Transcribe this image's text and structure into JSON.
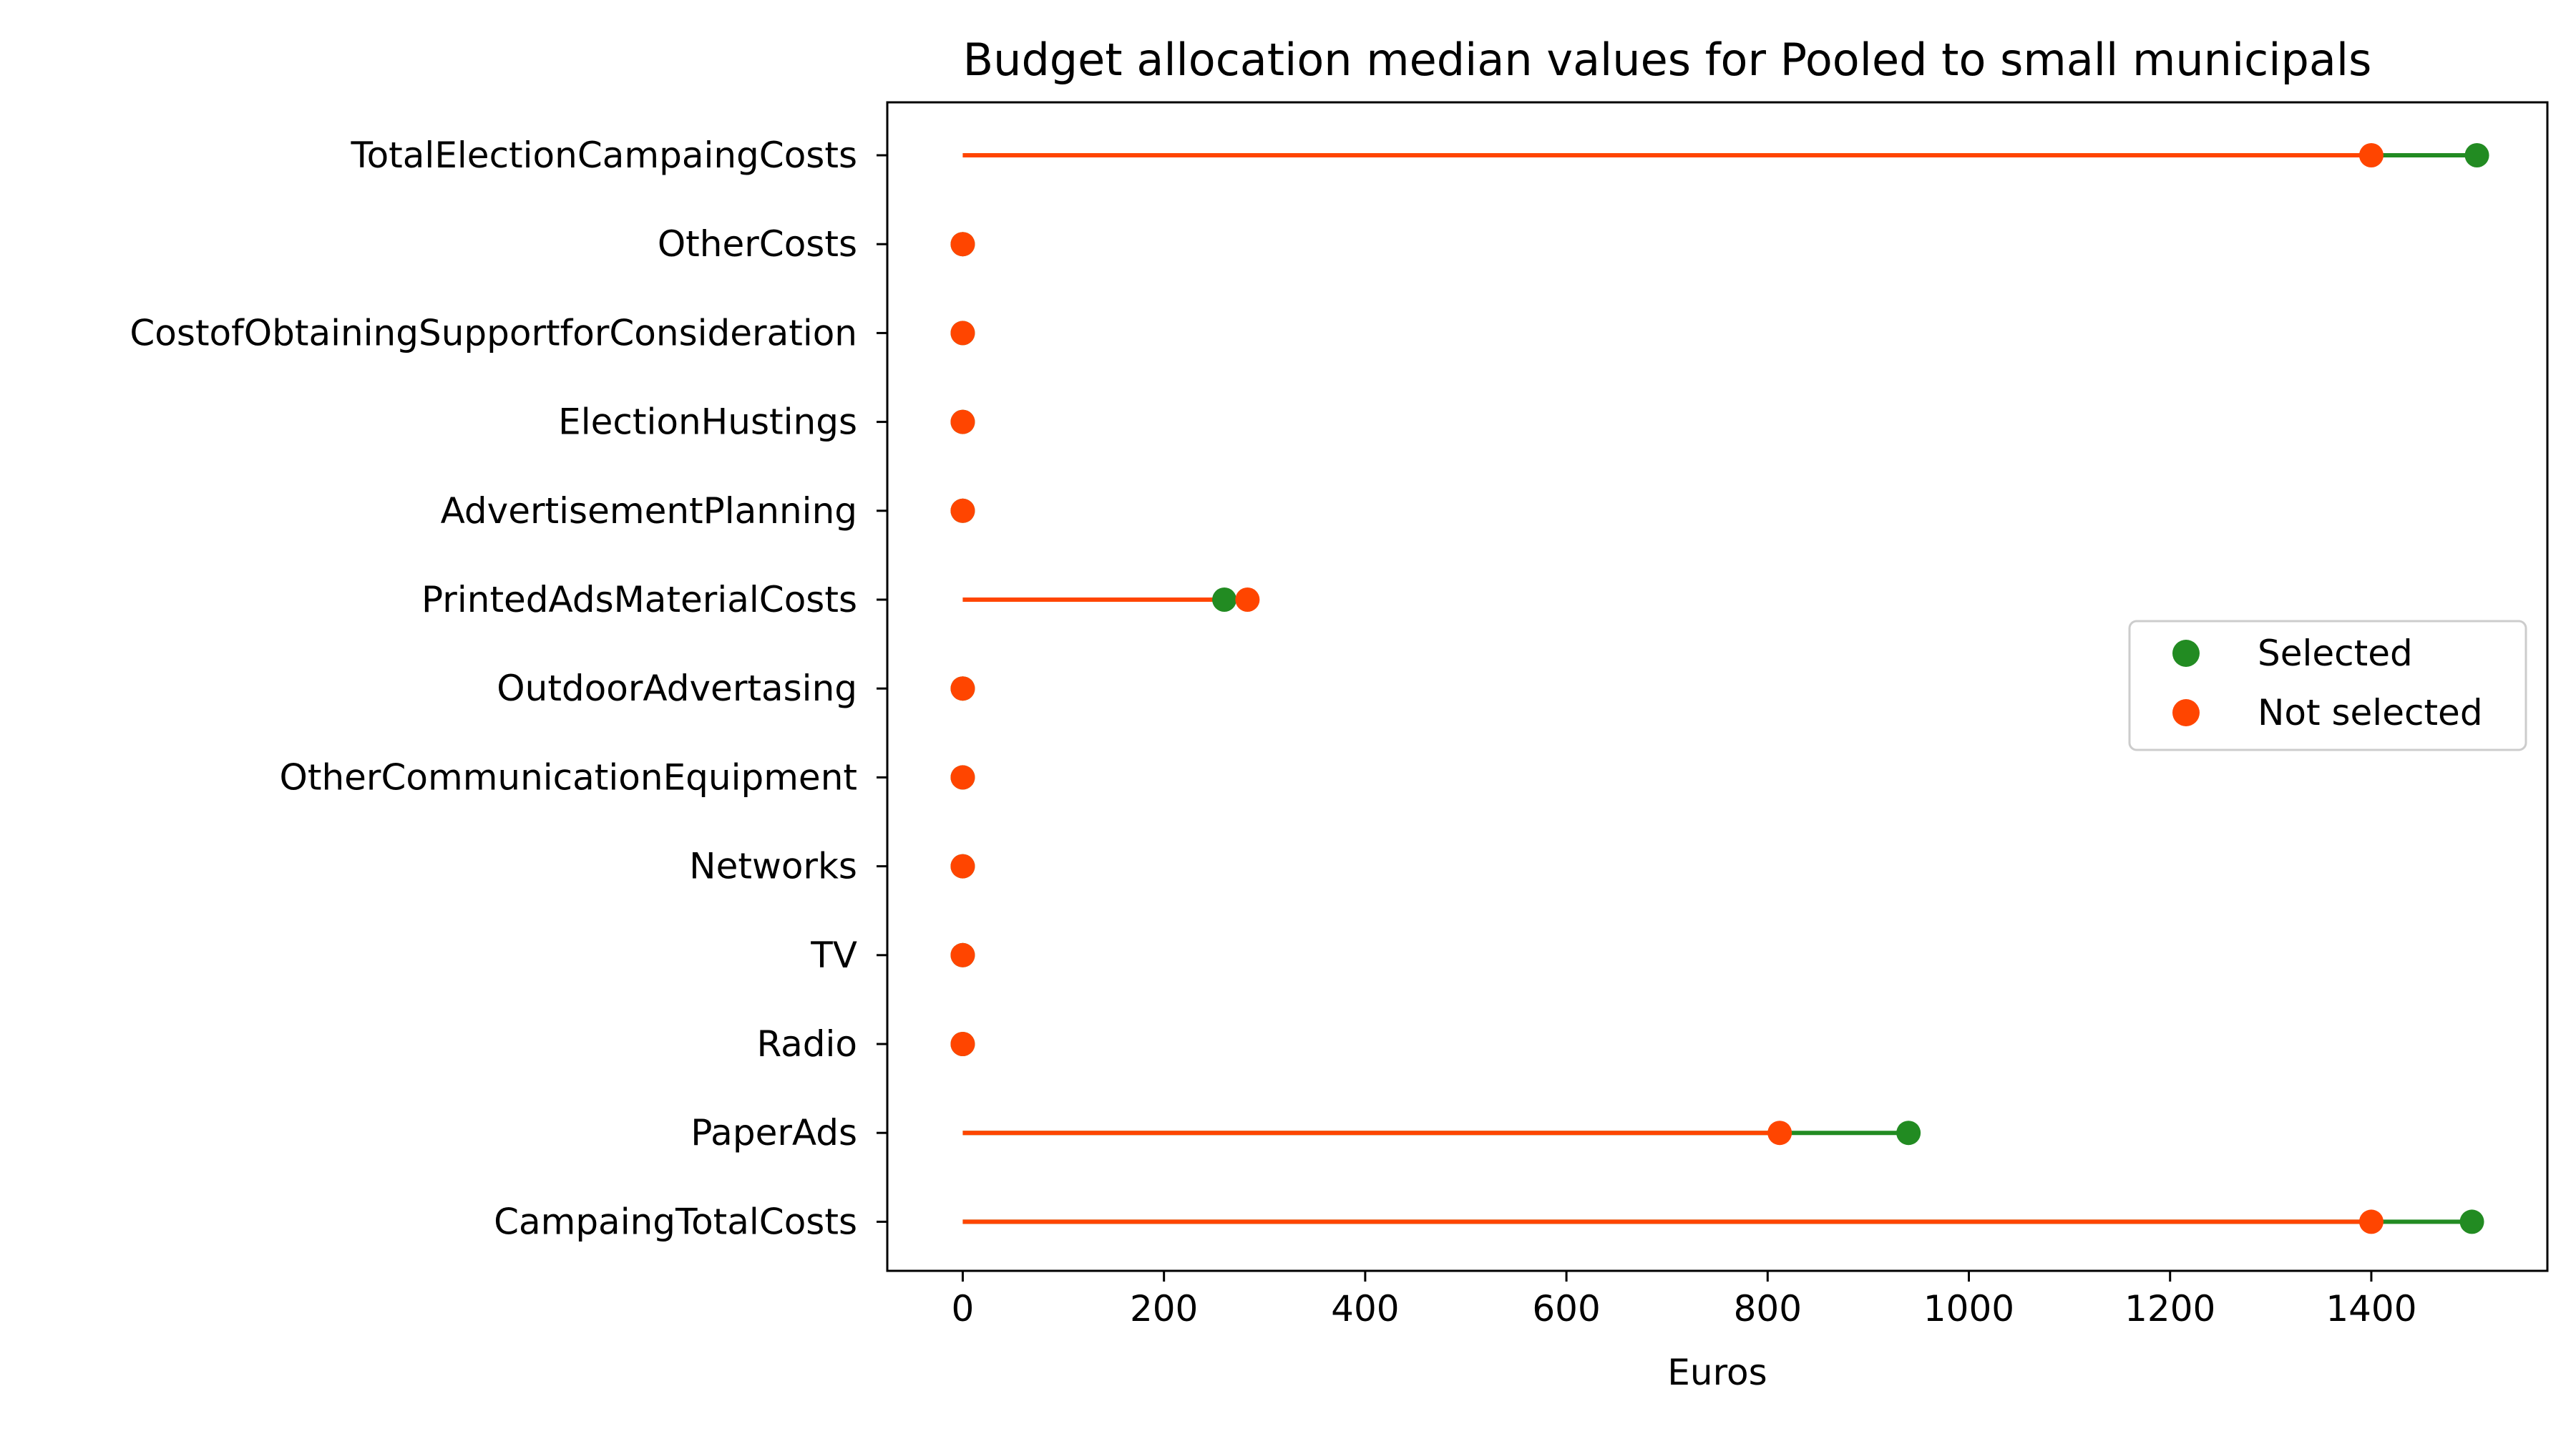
{
  "chart_data": {
    "type": "dumbbell",
    "title": "Budget allocation median values for Pooled to small municipals",
    "xlabel": "Euros",
    "ylabel": "",
    "xlim": [
      -75,
      1575
    ],
    "xticks": [
      0,
      200,
      400,
      600,
      800,
      1000,
      1200,
      1400
    ],
    "xtick_labels": [
      "0",
      "200",
      "400",
      "600",
      "800",
      "1000",
      "1200",
      "1400"
    ],
    "grid": false,
    "legend_position": "center-right",
    "categories": [
      "CampaingTotalCosts",
      "PaperAds",
      "Radio",
      "TV",
      "Networks",
      "OtherCommunicationEquipment",
      "OutdoorAdvertasing",
      "PrintedAdsMaterialCosts",
      "AdvertisementPlanning",
      "ElectionHustings",
      "CostofObtainingSupportforConsideration",
      "OtherCosts",
      "TotalElectionCampaingCosts"
    ],
    "series": [
      {
        "name": "Selected",
        "color": "#228b22",
        "values": [
          1500,
          940,
          0,
          0,
          0,
          0,
          0,
          260,
          0,
          0,
          0,
          0,
          1505
        ]
      },
      {
        "name": "Not selected",
        "color": "#ff4500",
        "values": [
          1400,
          812,
          0,
          0,
          0,
          0,
          0,
          283,
          0,
          0,
          0,
          0,
          1400
        ]
      }
    ]
  }
}
